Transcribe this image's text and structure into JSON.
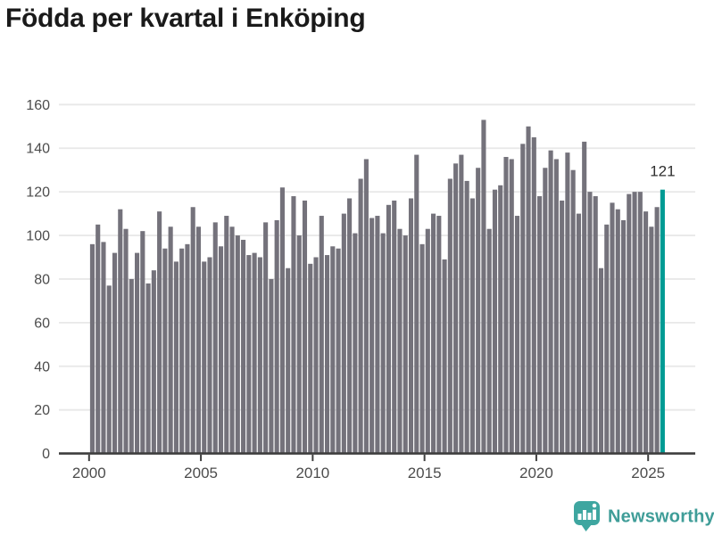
{
  "title": "Födda per kvartal i Enköping",
  "colors": {
    "background": "#ffffff",
    "title": "#1a1a1a",
    "bar": "#74727b",
    "accent": "#009b94",
    "grid": "#e8e8e8",
    "axis": "#3e3e3e",
    "tick_label": "#4c4c4c",
    "annotation": "#2f2f2f",
    "logo_badge": "#3ea6a0",
    "logo_glyph": "#ffffff",
    "logo_text": "#3f9d98"
  },
  "footer": {
    "brand": "Newsworthy",
    "logo_icon": "newsworthy-speech-bubble-bar-chart-icon"
  },
  "chart_data": {
    "type": "bar",
    "title": "Födda per kvartal i Enköping",
    "xlabel": "",
    "ylabel": "",
    "x_start": "2000-Q1",
    "x_end": "2025-Q3",
    "frequency": "quarterly",
    "values": [
      96,
      105,
      97,
      77,
      92,
      112,
      103,
      80,
      92,
      102,
      78,
      84,
      111,
      94,
      104,
      88,
      94,
      96,
      113,
      104,
      88,
      90,
      106,
      95,
      109,
      104,
      100,
      98,
      91,
      92,
      90,
      106,
      80,
      107,
      122,
      85,
      118,
      100,
      116,
      87,
      90,
      109,
      91,
      95,
      94,
      110,
      117,
      101,
      126,
      135,
      108,
      109,
      101,
      114,
      116,
      103,
      100,
      117,
      137,
      96,
      103,
      110,
      109,
      89,
      126,
      133,
      137,
      125,
      117,
      131,
      153,
      103,
      121,
      123,
      136,
      135,
      109,
      142,
      150,
      145,
      118,
      131,
      139,
      135,
      116,
      138,
      130,
      110,
      143,
      120,
      118,
      85,
      105,
      115,
      112,
      107,
      119,
      120,
      120,
      111,
      104,
      113,
      121
    ],
    "highlight_index": 102,
    "highlight_label": "121",
    "highlight_quarter": "2025-Q3",
    "xticks": [
      2000,
      2005,
      2010,
      2015,
      2020,
      2025
    ],
    "yticks": [
      0,
      20,
      40,
      60,
      80,
      100,
      120,
      140,
      160
    ],
    "ylim": [
      0,
      170
    ],
    "grid": true,
    "legend": false
  }
}
